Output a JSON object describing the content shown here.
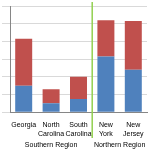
{
  "chart_data": {
    "type": "bar",
    "stacked": true,
    "categories": [
      "Georgia",
      "North Carolina",
      "South Carolina",
      "New York",
      "New Jersey"
    ],
    "series": [
      {
        "color": "#4f81bd",
        "values": [
          30,
          10,
          15,
          63,
          48
        ]
      },
      {
        "color": "#c0504d",
        "values": [
          53,
          16,
          25,
          41,
          55
        ]
      }
    ],
    "groups": [
      {
        "label": "Southern Region",
        "categories": [
          "Georgia",
          "North Carolina",
          "South Carolina"
        ]
      },
      {
        "label": "Northern Region",
        "categories": [
          "New York",
          "New Jersey"
        ]
      }
    ],
    "ylim": [
      0,
      120
    ],
    "yticks": [
      0,
      20,
      40,
      60,
      80,
      100,
      120
    ],
    "grid": true,
    "tick_labels": "x"
  }
}
